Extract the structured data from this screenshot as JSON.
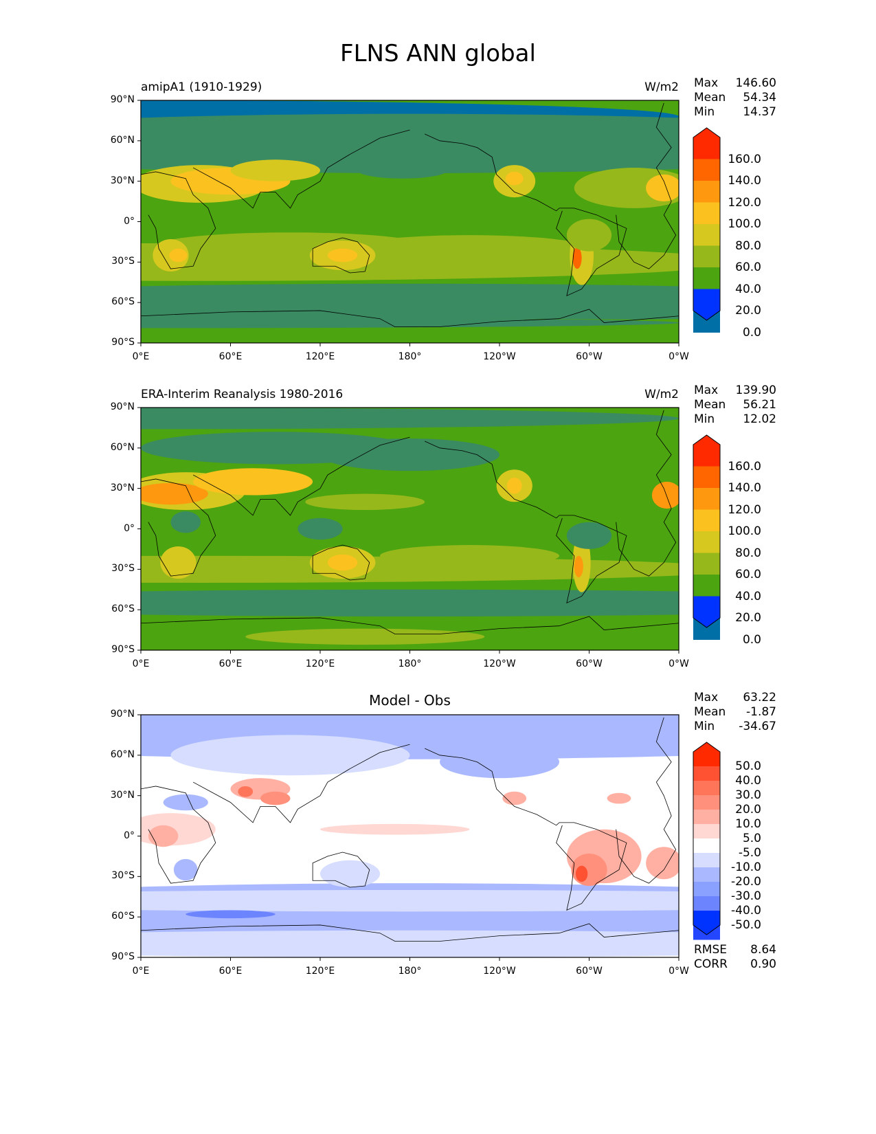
{
  "figure_title": "FLNS ANN global",
  "chart_data": [
    {
      "type": "heatmap",
      "title": "amipA1 (1910-1929)",
      "units": "W/m2",
      "stats": {
        "max_label": "Max",
        "max": "146.60",
        "mean_label": "Mean",
        "mean": "54.34",
        "min_label": "Min",
        "min": "14.37"
      },
      "colorbar": {
        "levels": [
          "160.0",
          "140.0",
          "120.0",
          "100.0",
          "80.0",
          "60.0",
          "40.0",
          "20.0",
          "0.0"
        ],
        "colors": [
          "#ff2a00",
          "#ff6600",
          "#fd980f",
          "#fbc21f",
          "#d6c81f",
          "#96b81b",
          "#4ca410",
          "#3a8a62",
          "#006fa6",
          "#0033ff"
        ]
      },
      "ylabels": [
        "90°N",
        "60°N",
        "30°N",
        "0°",
        "30°S",
        "60°S",
        "90°S"
      ],
      "xlabels": [
        "0°E",
        "60°E",
        "120°E",
        "180°",
        "120°W",
        "60°W",
        "0°W"
      ]
    },
    {
      "type": "heatmap",
      "title": "ERA-Interim Reanalysis 1980-2016",
      "units": "W/m2",
      "stats": {
        "max_label": "Max",
        "max": "139.90",
        "mean_label": "Mean",
        "mean": "56.21",
        "min_label": "Min",
        "min": "12.02"
      },
      "colorbar": {
        "levels": [
          "160.0",
          "140.0",
          "120.0",
          "100.0",
          "80.0",
          "60.0",
          "40.0",
          "20.0",
          "0.0"
        ],
        "colors": [
          "#ff2a00",
          "#ff6600",
          "#fd980f",
          "#fbc21f",
          "#d6c81f",
          "#96b81b",
          "#4ca410",
          "#3a8a62",
          "#006fa6",
          "#0033ff"
        ]
      },
      "ylabels": [
        "90°N",
        "60°N",
        "30°N",
        "0°",
        "30°S",
        "60°S",
        "90°S"
      ],
      "xlabels": [
        "0°E",
        "60°E",
        "120°E",
        "180°",
        "120°W",
        "60°W",
        "0°W"
      ]
    },
    {
      "type": "heatmap",
      "title": "Model - Obs",
      "stats": {
        "max_label": "Max",
        "max": "63.22",
        "mean_label": "Mean",
        "mean": "-1.87",
        "min_label": "Min",
        "min": "-34.67",
        "rmse_label": "RMSE",
        "rmse": "8.64",
        "corr_label": "CORR",
        "corr": "0.90"
      },
      "colorbar": {
        "levels": [
          "50.0",
          "40.0",
          "30.0",
          "20.0",
          "10.0",
          "5.0",
          "-5.0",
          "-10.0",
          "-20.0",
          "-30.0",
          "-40.0",
          "-50.0"
        ],
        "colors": [
          "#ff2a00",
          "#ff5233",
          "#ff7559",
          "#ff917c",
          "#ffb0a3",
          "#ffd8d3",
          "#ffffff",
          "#d6ddff",
          "#aab9ff",
          "#8ba1ff",
          "#6c85ff",
          "#4a66ff",
          "#2446ff",
          "#0033ff"
        ]
      },
      "ylabels": [
        "90°N",
        "60°N",
        "30°N",
        "0°",
        "30°S",
        "60°S",
        "90°S"
      ],
      "xlabels": [
        "0°E",
        "60°E",
        "120°E",
        "180°",
        "120°W",
        "60°W",
        "0°W"
      ]
    }
  ]
}
